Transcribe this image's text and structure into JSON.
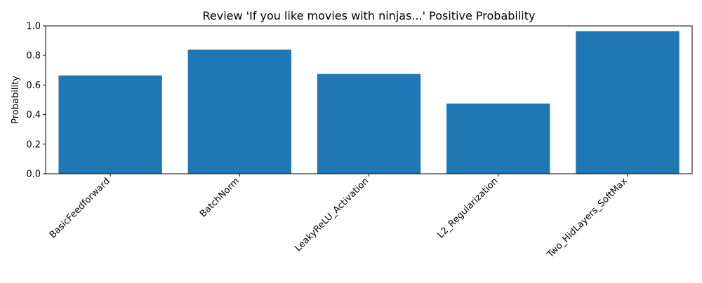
{
  "chart_data": {
    "type": "bar",
    "title": "Review 'If you like movies with ninjas...' Positive Probability",
    "xlabel": "",
    "ylabel": "Probability",
    "categories": [
      "BasicFeedforward",
      "BatchNorm",
      "LeakyReLU_Activation",
      "L2_Regularization",
      "Two_HidLayers_SoftMax"
    ],
    "values": [
      0.665,
      0.84,
      0.675,
      0.475,
      0.965
    ],
    "ylim": [
      0,
      1.0
    ],
    "yticks": [
      0.0,
      0.2,
      0.4,
      0.6,
      0.8,
      1.0
    ],
    "ytick_labels": [
      "0.0",
      "0.2",
      "0.4",
      "0.6",
      "0.8",
      "1.0"
    ],
    "bar_color": "#1f77b4",
    "grid": false,
    "legend": "none"
  }
}
